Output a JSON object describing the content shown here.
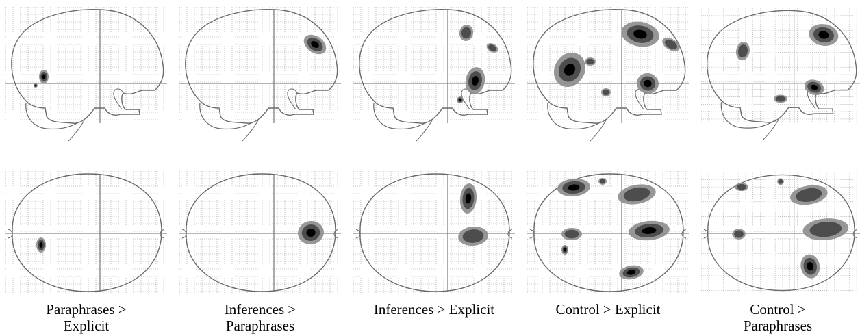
{
  "figure": {
    "columns": [
      {
        "id": "paraphrases-vs-explicit",
        "caption": [
          "Paraphrases >",
          "Explicit"
        ]
      },
      {
        "id": "inferences-vs-paraphrases",
        "caption": [
          "Inferences >",
          "Paraphrases"
        ]
      },
      {
        "id": "inferences-vs-explicit",
        "caption": [
          "Inferences > Explicit"
        ]
      },
      {
        "id": "control-vs-explicit",
        "caption": [
          "Control > Explicit"
        ]
      },
      {
        "id": "control-vs-paraphrases",
        "caption": [
          "Control >",
          "Paraphrases"
        ]
      }
    ],
    "colors": {
      "outline": "#6a6a6a",
      "grid": "#9a9a9a",
      "blob_dark": "#000000",
      "blob_mid": "#4d4d4d",
      "blob_light": "#8c8c8c"
    }
  }
}
